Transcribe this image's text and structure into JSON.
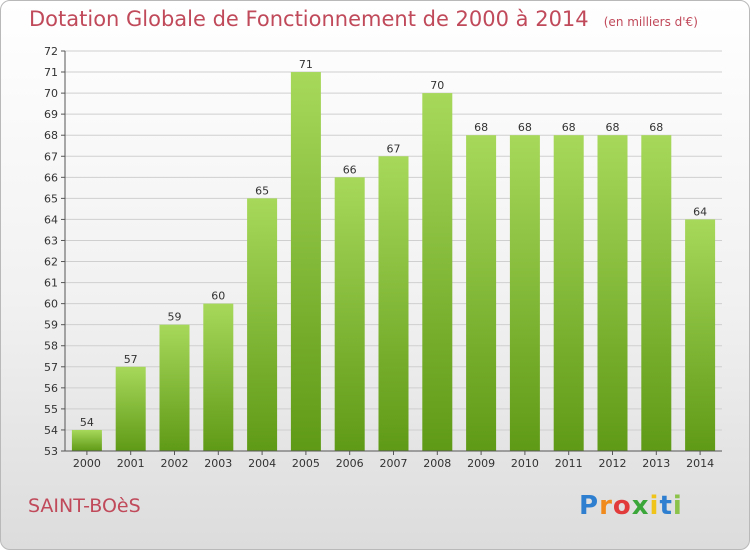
{
  "header": {
    "title": "Dotation Globale de Fonctionnement de 2000 à 2014",
    "unit": "(en milliers d'€)"
  },
  "footer": {
    "commune": "SAINT-BOèS",
    "logo": {
      "text": "Proxiti",
      "letters": [
        "P",
        "r",
        "o",
        "x",
        "i",
        "t",
        "i"
      ],
      "colors": [
        "#2f7fd0",
        "#f08a1c",
        "#e23b3b",
        "#3aa63a",
        "#f0c419",
        "#2f7fd0",
        "#8bc34a"
      ]
    }
  },
  "colors": {
    "title": "#c0495a",
    "bar_top": "#a7d85a",
    "bar_bottom": "#5f9a16",
    "grid": "#cfcfcf"
  },
  "chart_data": {
    "type": "bar",
    "title": "Dotation Globale de Fonctionnement de 2000 à 2014",
    "subtitle": "(en milliers d'€)",
    "xlabel": "",
    "ylabel": "",
    "ylim": [
      53,
      72
    ],
    "grid": true,
    "categories": [
      "2000",
      "2001",
      "2002",
      "2003",
      "2004",
      "2005",
      "2006",
      "2007",
      "2008",
      "2009",
      "2010",
      "2011",
      "2012",
      "2013",
      "2014"
    ],
    "values": [
      54,
      57,
      59,
      60,
      65,
      71,
      66,
      67,
      70,
      68,
      68,
      68,
      68,
      68,
      64
    ]
  }
}
